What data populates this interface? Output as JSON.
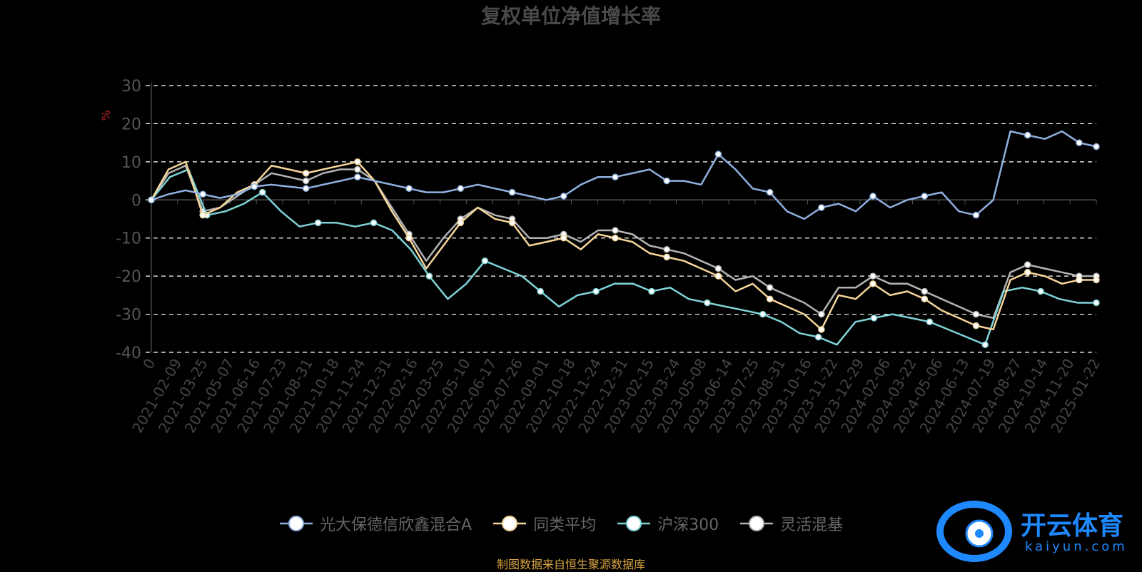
{
  "chart_data": {
    "type": "line",
    "title": "复权单位净值增长率",
    "ylabel": "%",
    "ylim": [
      -40,
      30
    ],
    "yticks": [
      30,
      20,
      10,
      0,
      -10,
      -20,
      -30,
      -40
    ],
    "grid": true,
    "legend_position": "bottom",
    "x_tick_labels": [
      "0",
      "2021-02-09",
      "2021-03-25",
      "2021-05-07",
      "2021-06-16",
      "2021-07-23",
      "2021-08-31",
      "2021-10-18",
      "2021-11-24",
      "2021-12-31",
      "2022-02-16",
      "2022-03-25",
      "2022-05-10",
      "2022-06-17",
      "2022-07-26",
      "2022-09-01",
      "2022-10-18",
      "2022-11-24",
      "2022-12-31",
      "2023-02-15",
      "2023-03-24",
      "2023-05-08",
      "2023-06-14",
      "2023-07-25",
      "2023-08-31",
      "2023-10-16",
      "2023-11-22",
      "2023-12-29",
      "2024-02-06",
      "2024-03-22",
      "2024-05-06",
      "2024-06-13",
      "2024-07-19",
      "2024-08-27",
      "2024-10-14",
      "2024-11-20",
      "2025-01-22"
    ],
    "series": [
      {
        "name": "光大保德信欣鑫混合A",
        "color": "#8fb0e0",
        "values": [
          0,
          1.5,
          2.5,
          1.5,
          0.5,
          1.5,
          3.5,
          4,
          3.5,
          3,
          4,
          5,
          6,
          5,
          4,
          3,
          2,
          2,
          3,
          4,
          3,
          2,
          1,
          0,
          1,
          4,
          6,
          6,
          7,
          8,
          5,
          5,
          4,
          12,
          8,
          3,
          2,
          -3,
          -5,
          -2,
          -1,
          -3,
          1,
          -2,
          0,
          1,
          2,
          -3,
          -4,
          0,
          18,
          17,
          16,
          18,
          15,
          14
        ]
      },
      {
        "name": "同类平均",
        "color": "#f5d59a",
        "values": [
          0,
          8,
          10,
          -4,
          -2,
          2,
          4,
          9,
          8,
          7,
          8,
          9,
          10,
          5,
          -3,
          -10,
          -18,
          -12,
          -6,
          -2,
          -5,
          -6,
          -12,
          -11,
          -10,
          -13,
          -9,
          -10,
          -11,
          -14,
          -15,
          -16,
          -18,
          -20,
          -24,
          -22,
          -26,
          -28,
          -30,
          -34,
          -25,
          -26,
          -22,
          -25,
          -24,
          -26,
          -29,
          -31,
          -33,
          -34,
          -21,
          -19,
          -20,
          -22,
          -21,
          -21
        ]
      },
      {
        "name": "沪深300",
        "color": "#7fd3d6",
        "values": [
          0,
          6,
          8,
          -4,
          -3,
          -1,
          2,
          -3,
          -7,
          -6,
          -6,
          -7,
          -6,
          -8,
          -13,
          -20,
          -26,
          -22,
          -16,
          -18,
          -20,
          -24,
          -28,
          -25,
          -24,
          -22,
          -22,
          -24,
          -23,
          -26,
          -27,
          -28,
          -29,
          -30,
          -32,
          -35,
          -36,
          -38,
          -32,
          -31,
          -30,
          -31,
          -32,
          -34,
          -36,
          -38,
          -24,
          -23,
          -24,
          -26,
          -27,
          -27
        ]
      },
      {
        "name": "灵活混基",
        "color": "#b3b3b3",
        "values": [
          0,
          7,
          9,
          -3,
          -2,
          1,
          4,
          7,
          6,
          5,
          7,
          8,
          8,
          5,
          -2,
          -9,
          -16,
          -10,
          -5,
          -2,
          -4,
          -5,
          -10,
          -10,
          -9,
          -11,
          -8,
          -8,
          -9,
          -12,
          -13,
          -14,
          -16,
          -18,
          -21,
          -20,
          -23,
          -25,
          -27,
          -30,
          -23,
          -23,
          -20,
          -22,
          -22,
          -24,
          -26,
          -28,
          -30,
          -31,
          -19,
          -17,
          -18,
          -19,
          -20,
          -20
        ]
      }
    ]
  },
  "source_note": "制图数据来自恒生聚源数据库",
  "watermark": {
    "text": "开云体育",
    "sub": "kaiyun.com"
  }
}
